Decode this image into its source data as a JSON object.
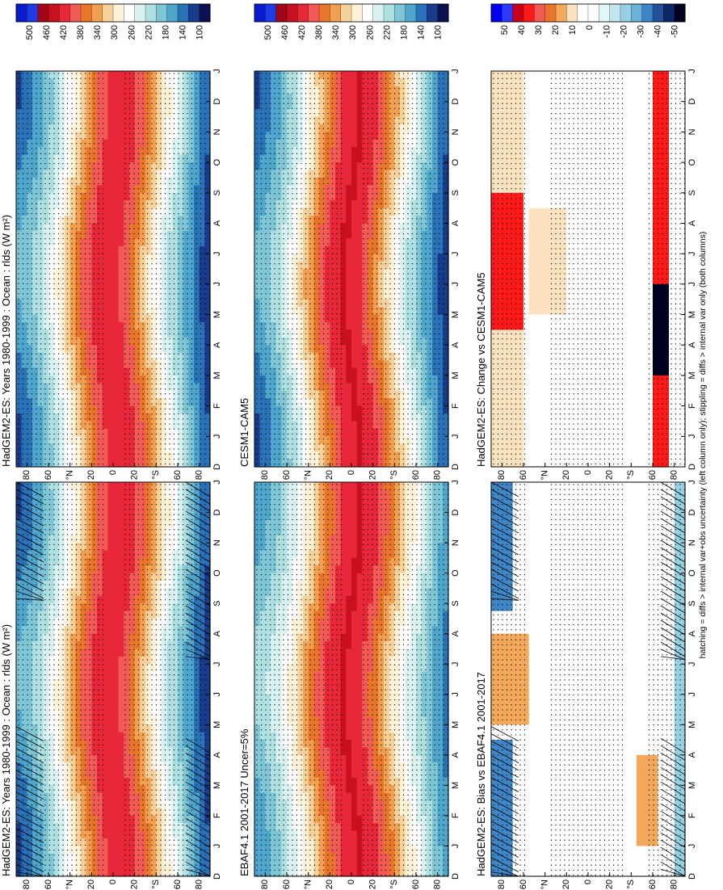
{
  "footnote": "hatching = diffs > internal var+obs uncertainty (left column only); stippling = diffs > internal var only (both columns)",
  "chart_data": [
    {
      "type": "heatmap",
      "id": "p1",
      "position": "top-left",
      "title": "HadGEM2-ES: Years 1980-1999 : Ocean : rlds (W m²)",
      "x_tick_labels": [
        "D",
        "J",
        "F",
        "M",
        "A",
        "M",
        "J",
        "J",
        "A",
        "S",
        "O",
        "N",
        "D",
        "J"
      ],
      "y_tick_labels": [
        "80",
        "60",
        "°N",
        "20",
        "0",
        "20",
        "°S",
        "60",
        "80"
      ],
      "ylim": [
        -90,
        90
      ],
      "colorbar": {
        "labels": [
          "500",
          "460",
          "420",
          "380",
          "340",
          "300",
          "260",
          "220",
          "180",
          "140",
          "100"
        ],
        "range": [
          100,
          500
        ]
      },
      "equator_value": 405,
      "pole_value": 160,
      "hatching": true,
      "stippling": true
    },
    {
      "type": "heatmap",
      "id": "p2",
      "position": "top-right",
      "title": "HadGEM2-ES: Years 1980-1999 : Ocean : rlds (W m²)",
      "x_tick_labels": [
        "D",
        "J",
        "F",
        "M",
        "A",
        "M",
        "J",
        "J",
        "A",
        "S",
        "O",
        "N",
        "D",
        "J"
      ],
      "y_tick_labels": [
        "80",
        "60",
        "°N",
        "20",
        "0",
        "20",
        "°S",
        "60",
        "80"
      ],
      "ylim": [
        -90,
        90
      ],
      "colorbar": {
        "labels": [
          "500",
          "460",
          "420",
          "380",
          "340",
          "300",
          "260",
          "220",
          "180",
          "140",
          "100"
        ],
        "range": [
          100,
          500
        ]
      },
      "equator_value": 405,
      "pole_value": 160,
      "hatching": false,
      "stippling": true
    },
    {
      "type": "heatmap",
      "id": "p3",
      "position": "middle-left",
      "title": "EBAF4.1 2001-2017 Uncer=5%",
      "x_tick_labels": [
        "D",
        "J",
        "F",
        "M",
        "A",
        "M",
        "J",
        "J",
        "A",
        "S",
        "O",
        "N",
        "D",
        "J"
      ],
      "y_tick_labels": [
        "80",
        "60",
        "°N",
        "20",
        "0",
        "20",
        "°S",
        "60",
        "80"
      ],
      "ylim": [
        -90,
        90
      ],
      "colorbar": {
        "labels": [
          "500",
          "460",
          "420",
          "380",
          "340",
          "300",
          "260",
          "220",
          "180",
          "140",
          "100"
        ],
        "range": [
          100,
          500
        ]
      },
      "equator_value": 412,
      "pole_value": 190,
      "hatching": false,
      "stippling": true
    },
    {
      "type": "heatmap",
      "id": "p4",
      "position": "middle-right",
      "title": "CESM1-CAM5",
      "x_tick_labels": [
        "D",
        "J",
        "F",
        "M",
        "A",
        "M",
        "J",
        "J",
        "A",
        "S",
        "O",
        "N",
        "D",
        "J"
      ],
      "y_tick_labels": [
        "80",
        "60",
        "°N",
        "20",
        "0",
        "20",
        "°S",
        "60",
        "80"
      ],
      "ylim": [
        -90,
        90
      ],
      "colorbar": {
        "labels": [
          "500",
          "460",
          "420",
          "380",
          "340",
          "300",
          "260",
          "220",
          "180",
          "140",
          "100"
        ],
        "range": [
          100,
          500
        ]
      },
      "equator_value": 412,
      "pole_value": 160,
      "hatching": false,
      "stippling": true
    },
    {
      "type": "heatmap",
      "id": "p5",
      "position": "bottom-left",
      "title": "HadGEM2-ES: Bias vs EBAF4.1 2001-2017",
      "x_tick_labels": [
        "D",
        "J",
        "F",
        "M",
        "A",
        "M",
        "J",
        "J",
        "A",
        "S",
        "O",
        "N",
        "D",
        "J"
      ],
      "y_tick_labels": [
        "80",
        "60",
        "°N",
        "20",
        "0",
        "20",
        "°S",
        "60",
        "80"
      ],
      "ylim": [
        -90,
        90
      ],
      "colorbar": {
        "labels": [
          "50",
          "40",
          "30",
          "20",
          "10",
          "0",
          "-10",
          "-20",
          "-30",
          "-40",
          "-50"
        ],
        "range": [
          -50,
          50
        ]
      },
      "hatching": true,
      "stippling": true
    },
    {
      "type": "heatmap",
      "id": "p6",
      "position": "bottom-right",
      "title": "HadGEM2-ES: Change vs CESM1-CAM5",
      "x_tick_labels": [
        "D",
        "J",
        "F",
        "M",
        "A",
        "M",
        "J",
        "J",
        "A",
        "S",
        "O",
        "N",
        "D",
        "J"
      ],
      "y_tick_labels": [
        "80",
        "60",
        "°N",
        "20",
        "0",
        "20",
        "°S",
        "60",
        "80"
      ],
      "ylim": [
        -90,
        90
      ],
      "colorbar": {
        "labels": [
          "50",
          "40",
          "30",
          "20",
          "10",
          "0",
          "-10",
          "-20",
          "-30",
          "-40",
          "-50"
        ],
        "range": [
          -50,
          50
        ]
      },
      "hatching": false,
      "stippling": true
    }
  ]
}
